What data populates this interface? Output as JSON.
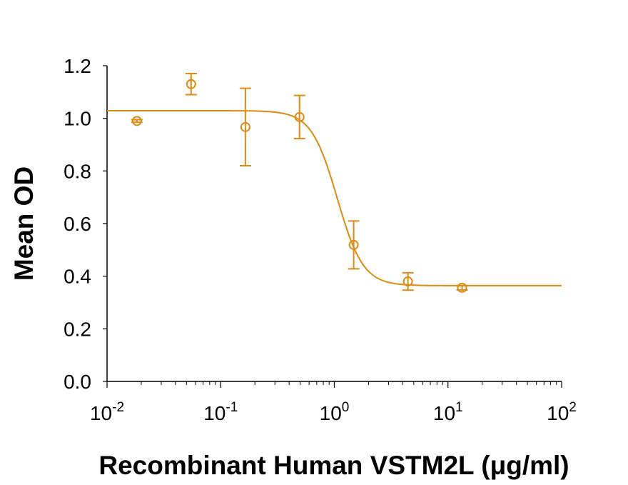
{
  "chart_data": {
    "type": "scatter",
    "title": "",
    "xlabel": "Recombinant Human VSTM2L (μg/ml)",
    "ylabel": "Mean OD",
    "xscale": "log",
    "xlim": [
      0.01,
      100
    ],
    "ylim": [
      0.0,
      1.2
    ],
    "x_tick_labels": [
      {
        "base": "10",
        "exp": "-2"
      },
      {
        "base": "10",
        "exp": "-1"
      },
      {
        "base": "10",
        "exp": "0"
      },
      {
        "base": "10",
        "exp": "1"
      },
      {
        "base": "10",
        "exp": "2"
      }
    ],
    "y_tick_labels": [
      "0.0",
      "0.2",
      "0.4",
      "0.6",
      "0.8",
      "1.0",
      "1.2"
    ],
    "y_ticks": [
      0,
      0.2,
      0.4,
      0.6,
      0.8,
      1.0,
      1.2
    ],
    "grid": false,
    "color": "#E08A12",
    "series": [
      {
        "marker": "open-circle",
        "x": [
          0.0183,
          0.0549,
          0.165,
          0.494,
          1.48,
          4.44,
          13.3
        ],
        "y": [
          0.99,
          1.13,
          0.967,
          1.005,
          0.519,
          0.38,
          0.356
        ],
        "error": [
          0.005,
          0.04,
          0.147,
          0.082,
          0.091,
          0.033,
          0.008
        ]
      }
    ],
    "fit": {
      "model": "4PL",
      "top": 1.029,
      "bottom": 0.364,
      "ec50": 1.06,
      "hill": 3.8
    }
  }
}
